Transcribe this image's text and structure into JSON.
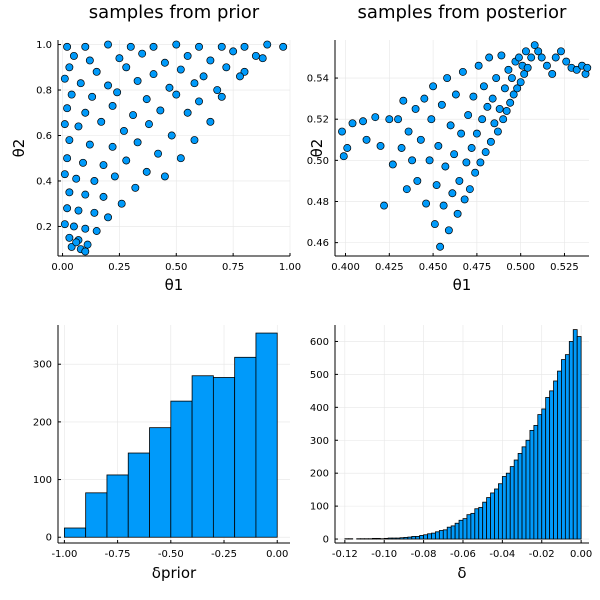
{
  "figure": {
    "background": "#ffffff",
    "accent": "#009AFA",
    "edge": "#000000",
    "grid_color": "#e6e6e6"
  },
  "chart_data": [
    {
      "id": "prior-scatter",
      "type": "scatter",
      "title": "samples from prior",
      "xlabel": "θ1",
      "ylabel": "θ2",
      "xlim": [
        -0.02,
        1.0
      ],
      "ylim": [
        0.07,
        1.02
      ],
      "xticks": [
        0.0,
        0.25,
        0.5,
        0.75,
        1.0
      ],
      "xtick_labels": [
        "0.00",
        "0.25",
        "0.50",
        "0.75",
        "1.00"
      ],
      "yticks": [
        0.2,
        0.4,
        0.6,
        0.8,
        1.0
      ],
      "ytick_labels": [
        "0.2",
        "0.4",
        "0.6",
        "0.8",
        "1.0"
      ],
      "grid": true,
      "legend": "none",
      "series": [
        {
          "color": "#009AFA",
          "points": [
            [
              0.02,
              0.99
            ],
            [
              0.1,
              0.99
            ],
            [
              0.2,
              1.0
            ],
            [
              0.3,
              0.99
            ],
            [
              0.4,
              0.99
            ],
            [
              0.5,
              1.0
            ],
            [
              0.6,
              0.99
            ],
            [
              0.7,
              0.99
            ],
            [
              0.8,
              0.99
            ],
            [
              0.9,
              1.0
            ],
            [
              0.97,
              0.99
            ],
            [
              0.05,
              0.95
            ],
            [
              0.12,
              0.93
            ],
            [
              0.25,
              0.94
            ],
            [
              0.35,
              0.96
            ],
            [
              0.45,
              0.92
            ],
            [
              0.55,
              0.95
            ],
            [
              0.65,
              0.93
            ],
            [
              0.75,
              0.97
            ],
            [
              0.85,
              0.95
            ],
            [
              0.03,
              0.9
            ],
            [
              0.15,
              0.88
            ],
            [
              0.28,
              0.9
            ],
            [
              0.4,
              0.87
            ],
            [
              0.52,
              0.89
            ],
            [
              0.62,
              0.86
            ],
            [
              0.72,
              0.9
            ],
            [
              0.8,
              0.88
            ],
            [
              0.88,
              0.94
            ],
            [
              0.01,
              0.85
            ],
            [
              0.08,
              0.83
            ],
            [
              0.2,
              0.82
            ],
            [
              0.33,
              0.84
            ],
            [
              0.47,
              0.81
            ],
            [
              0.58,
              0.83
            ],
            [
              0.68,
              0.8
            ],
            [
              0.78,
              0.86
            ],
            [
              0.04,
              0.78
            ],
            [
              0.13,
              0.77
            ],
            [
              0.24,
              0.79
            ],
            [
              0.37,
              0.76
            ],
            [
              0.5,
              0.78
            ],
            [
              0.6,
              0.75
            ],
            [
              0.7,
              0.77
            ],
            [
              0.02,
              0.72
            ],
            [
              0.1,
              0.7
            ],
            [
              0.22,
              0.73
            ],
            [
              0.31,
              0.69
            ],
            [
              0.43,
              0.71
            ],
            [
              0.55,
              0.7
            ],
            [
              0.65,
              0.66
            ],
            [
              0.01,
              0.65
            ],
            [
              0.07,
              0.64
            ],
            [
              0.17,
              0.66
            ],
            [
              0.27,
              0.62
            ],
            [
              0.38,
              0.65
            ],
            [
              0.48,
              0.6
            ],
            [
              0.58,
              0.58
            ],
            [
              0.03,
              0.58
            ],
            [
              0.12,
              0.56
            ],
            [
              0.22,
              0.55
            ],
            [
              0.33,
              0.57
            ],
            [
              0.42,
              0.52
            ],
            [
              0.52,
              0.5
            ],
            [
              0.02,
              0.5
            ],
            [
              0.09,
              0.48
            ],
            [
              0.18,
              0.47
            ],
            [
              0.28,
              0.49
            ],
            [
              0.37,
              0.44
            ],
            [
              0.45,
              0.42
            ],
            [
              0.01,
              0.43
            ],
            [
              0.06,
              0.41
            ],
            [
              0.14,
              0.4
            ],
            [
              0.23,
              0.42
            ],
            [
              0.32,
              0.37
            ],
            [
              0.03,
              0.35
            ],
            [
              0.1,
              0.34
            ],
            [
              0.18,
              0.33
            ],
            [
              0.26,
              0.3
            ],
            [
              0.02,
              0.28
            ],
            [
              0.07,
              0.27
            ],
            [
              0.14,
              0.26
            ],
            [
              0.2,
              0.24
            ],
            [
              0.01,
              0.21
            ],
            [
              0.05,
              0.2
            ],
            [
              0.1,
              0.19
            ],
            [
              0.15,
              0.18
            ],
            [
              0.03,
              0.15
            ],
            [
              0.07,
              0.14
            ],
            [
              0.11,
              0.12
            ],
            [
              0.04,
              0.11
            ],
            [
              0.08,
              0.1
            ],
            [
              0.06,
              0.13
            ],
            [
              0.1,
              0.09
            ]
          ]
        }
      ]
    },
    {
      "id": "posterior-scatter",
      "type": "scatter",
      "title": "samples from posterior",
      "xlabel": "θ1",
      "ylabel": "θ2",
      "xlim": [
        0.394,
        0.539
      ],
      "ylim": [
        0.4535,
        0.5585
      ],
      "xticks": [
        0.4,
        0.425,
        0.45,
        0.475,
        0.5,
        0.525
      ],
      "xtick_labels": [
        "0.400",
        "0.425",
        "0.450",
        "0.475",
        "0.500",
        "0.525"
      ],
      "yticks": [
        0.46,
        0.48,
        0.5,
        0.52,
        0.54
      ],
      "ytick_labels": [
        "0.46",
        "0.48",
        "0.50",
        "0.52",
        "0.54"
      ],
      "grid": true,
      "legend": "none",
      "series": [
        {
          "color": "#009AFA",
          "points": [
            [
              0.398,
              0.514
            ],
            [
              0.399,
              0.502
            ],
            [
              0.401,
              0.506
            ],
            [
              0.404,
              0.518
            ],
            [
              0.41,
              0.519
            ],
            [
              0.412,
              0.51
            ],
            [
              0.417,
              0.521
            ],
            [
              0.42,
              0.507
            ],
            [
              0.422,
              0.478
            ],
            [
              0.425,
              0.52
            ],
            [
              0.427,
              0.498
            ],
            [
              0.43,
              0.52
            ],
            [
              0.432,
              0.506
            ],
            [
              0.433,
              0.529
            ],
            [
              0.435,
              0.486
            ],
            [
              0.436,
              0.514
            ],
            [
              0.438,
              0.5
            ],
            [
              0.44,
              0.525
            ],
            [
              0.441,
              0.49
            ],
            [
              0.443,
              0.51
            ],
            [
              0.445,
              0.53
            ],
            [
              0.446,
              0.479
            ],
            [
              0.448,
              0.5
            ],
            [
              0.449,
              0.52
            ],
            [
              0.45,
              0.536
            ],
            [
              0.451,
              0.469
            ],
            [
              0.452,
              0.488
            ],
            [
              0.453,
              0.507
            ],
            [
              0.454,
              0.458
            ],
            [
              0.455,
              0.527
            ],
            [
              0.456,
              0.478
            ],
            [
              0.457,
              0.497
            ],
            [
              0.458,
              0.54
            ],
            [
              0.459,
              0.466
            ],
            [
              0.46,
              0.517
            ],
            [
              0.461,
              0.484
            ],
            [
              0.462,
              0.503
            ],
            [
              0.463,
              0.532
            ],
            [
              0.464,
              0.474
            ],
            [
              0.465,
              0.49
            ],
            [
              0.466,
              0.513
            ],
            [
              0.467,
              0.543
            ],
            [
              0.468,
              0.481
            ],
            [
              0.469,
              0.499
            ],
            [
              0.47,
              0.522
            ],
            [
              0.471,
              0.486
            ],
            [
              0.472,
              0.506
            ],
            [
              0.473,
              0.531
            ],
            [
              0.474,
              0.494
            ],
            [
              0.475,
              0.513
            ],
            [
              0.476,
              0.546
            ],
            [
              0.477,
              0.499
            ],
            [
              0.478,
              0.52
            ],
            [
              0.479,
              0.536
            ],
            [
              0.48,
              0.504
            ],
            [
              0.481,
              0.526
            ],
            [
              0.482,
              0.55
            ],
            [
              0.483,
              0.509
            ],
            [
              0.484,
              0.53
            ],
            [
              0.485,
              0.518
            ],
            [
              0.486,
              0.54
            ],
            [
              0.487,
              0.514
            ],
            [
              0.488,
              0.525
            ],
            [
              0.489,
              0.551
            ],
            [
              0.49,
              0.52
            ],
            [
              0.491,
              0.535
            ],
            [
              0.492,
              0.524
            ],
            [
              0.493,
              0.544
            ],
            [
              0.494,
              0.528
            ],
            [
              0.495,
              0.54
            ],
            [
              0.496,
              0.532
            ],
            [
              0.497,
              0.548
            ],
            [
              0.498,
              0.535
            ],
            [
              0.499,
              0.55
            ],
            [
              0.5,
              0.538
            ],
            [
              0.501,
              0.546
            ],
            [
              0.502,
              0.542
            ],
            [
              0.503,
              0.553
            ],
            [
              0.504,
              0.545
            ],
            [
              0.506,
              0.55
            ],
            [
              0.508,
              0.556
            ],
            [
              0.51,
              0.553
            ],
            [
              0.512,
              0.55
            ],
            [
              0.515,
              0.546
            ],
            [
              0.518,
              0.542
            ],
            [
              0.52,
              0.55
            ],
            [
              0.523,
              0.553
            ],
            [
              0.526,
              0.548
            ],
            [
              0.529,
              0.545
            ],
            [
              0.532,
              0.544
            ],
            [
              0.535,
              0.546
            ],
            [
              0.537,
              0.542
            ],
            [
              0.538,
              0.545
            ]
          ]
        }
      ]
    },
    {
      "id": "prior-histogram",
      "type": "bar",
      "title": "",
      "xlabel": "δprior",
      "ylabel": "",
      "xlim": [
        -1.03,
        0.06
      ],
      "ylim": [
        -10,
        368
      ],
      "xticks": [
        -1.0,
        -0.75,
        -0.5,
        -0.25,
        0.0
      ],
      "xtick_labels": [
        "-1.00",
        "-0.75",
        "-0.50",
        "-0.25",
        "0.00"
      ],
      "yticks": [
        0,
        100,
        200,
        300
      ],
      "ytick_labels": [
        "0",
        "100",
        "200",
        "300"
      ],
      "grid": true,
      "legend": "none",
      "bin_edges": [
        -1.0,
        -0.9,
        -0.8,
        -0.7,
        -0.6,
        -0.5,
        -0.4,
        -0.3,
        -0.2,
        -0.1,
        0.0
      ],
      "values": [
        16,
        77,
        108,
        146,
        190,
        236,
        280,
        277,
        312,
        354
      ]
    },
    {
      "id": "posterior-histogram",
      "type": "bar",
      "title": "",
      "xlabel": "δ",
      "ylabel": "",
      "xlim": [
        -0.125,
        0.004
      ],
      "ylim": [
        -12,
        650
      ],
      "xticks": [
        -0.12,
        -0.1,
        -0.08,
        -0.06,
        -0.04,
        -0.02,
        0.0
      ],
      "xtick_labels": [
        "-0.12",
        "-0.10",
        "-0.08",
        "-0.06",
        "-0.04",
        "-0.02",
        "0.00"
      ],
      "yticks": [
        0,
        100,
        200,
        300,
        400,
        500,
        600
      ],
      "ytick_labels": [
        "0",
        "100",
        "200",
        "300",
        "400",
        "500",
        "600"
      ],
      "grid": true,
      "legend": "none",
      "bin_start": -0.12,
      "bin_width": 0.002,
      "values": [
        1,
        1,
        0,
        1,
        1,
        1,
        1,
        2,
        2,
        1,
        2,
        3,
        3,
        3,
        4,
        5,
        6,
        8,
        8,
        11,
        13,
        16,
        18,
        22,
        26,
        28,
        36,
        40,
        48,
        57,
        62,
        74,
        78,
        92,
        96,
        112,
        126,
        140,
        152,
        168,
        190,
        200,
        220,
        240,
        260,
        280,
        300,
        330,
        345,
        378,
        395,
        430,
        450,
        480,
        510,
        545,
        560,
        600,
        636,
        615
      ]
    }
  ]
}
